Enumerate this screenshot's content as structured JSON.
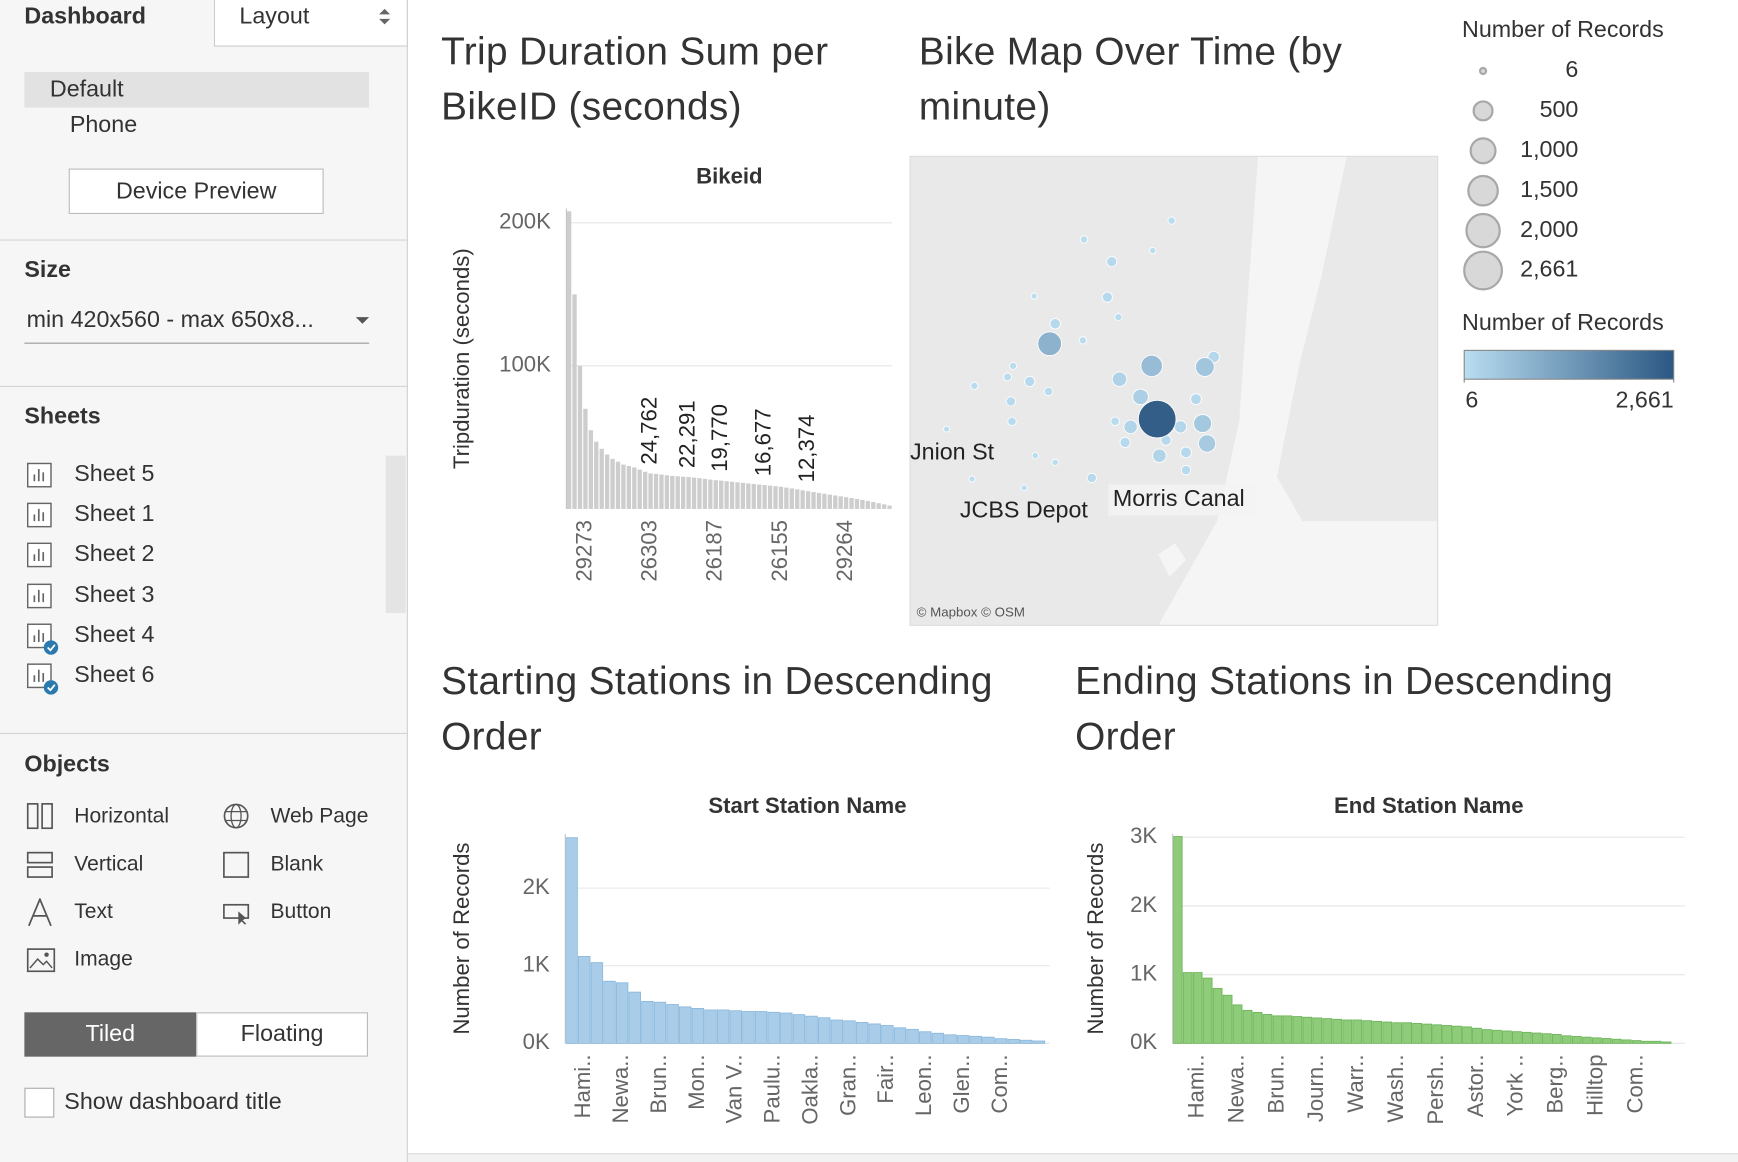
{
  "sidebar": {
    "tabs": [
      "Dashboard",
      "Layout"
    ],
    "devices": [
      "Default",
      "Phone"
    ],
    "device_preview": "Device Preview",
    "size_heading": "Size",
    "size_value": "min 420x560 - max 650x8...",
    "sheets_heading": "Sheets",
    "sheets": [
      "Sheet 5",
      "Sheet 1",
      "Sheet 2",
      "Sheet 3",
      "Sheet 4",
      "Sheet 6"
    ],
    "objects_heading": "Objects",
    "objects": [
      "Horizontal",
      "Web Page",
      "Vertical",
      "Blank",
      "Text",
      "Button",
      "Image"
    ],
    "layout_modes": [
      "Tiled",
      "Floating"
    ],
    "show_title": "Show dashboard title"
  },
  "chart_data": [
    {
      "type": "bar",
      "title": "Trip Duration Sum per BikeID (seconds)",
      "x_label": "Bikeid",
      "y_label": "Tripduration (seconds)",
      "color": "#cdcdcd",
      "categories": [
        null,
        null,
        null,
        "29273",
        null,
        null,
        null,
        null,
        null,
        null,
        null,
        null,
        null,
        null,
        null,
        "26303",
        null,
        null,
        null,
        null,
        null,
        null,
        null,
        null,
        null,
        null,
        null,
        "26187",
        null,
        null,
        null,
        null,
        null,
        null,
        null,
        null,
        null,
        null,
        null,
        "26155",
        null,
        null,
        null,
        null,
        null,
        null,
        null,
        null,
        null,
        null,
        null,
        "29264",
        null,
        null,
        null,
        null,
        null,
        null,
        null,
        null
      ],
      "values": [
        208000,
        150000,
        100000,
        70000,
        55000,
        47000,
        42000,
        38000,
        35000,
        33000,
        31000,
        30000,
        29000,
        27500,
        26000,
        24762,
        24500,
        24000,
        23500,
        23100,
        22800,
        22500,
        22291,
        21900,
        21500,
        21000,
        20500,
        20100,
        19770,
        19400,
        19000,
        18600,
        18200,
        17800,
        17400,
        17000,
        16677,
        16300,
        15900,
        15500,
        14900,
        14300,
        13700,
        13000,
        12374,
        11800,
        11200,
        10600,
        10000,
        9400,
        8800,
        8200,
        7600,
        7000,
        6300,
        5600,
        4800,
        4000,
        3200,
        2400
      ],
      "value_labels": [
        null,
        null,
        null,
        null,
        null,
        null,
        null,
        null,
        null,
        null,
        null,
        null,
        null,
        null,
        null,
        "24,762",
        null,
        null,
        null,
        null,
        null,
        null,
        "22,291",
        null,
        null,
        null,
        null,
        null,
        "19,770",
        null,
        null,
        null,
        null,
        null,
        null,
        null,
        "16,677",
        null,
        null,
        null,
        null,
        null,
        null,
        null,
        "12,374",
        null,
        null,
        null,
        null,
        null,
        null,
        null,
        null,
        null,
        null,
        null,
        null,
        null,
        null,
        null
      ],
      "ylim": [
        0,
        210000
      ],
      "yticks": [
        {
          "value": 100000,
          "label": "100K"
        },
        {
          "value": 200000,
          "label": "200K"
        }
      ],
      "grid": true
    },
    {
      "type": "map",
      "title": "Bike Map Over Time (by minute)",
      "place_labels": [
        "Jnion St",
        "JCBS Depot",
        "Morris Canal"
      ],
      "attribution": "© Mapbox © OSM",
      "lonlim": [
        -74.09,
        -73.9948
      ],
      "latlim": [
        40.75,
        40.6654
      ],
      "points": [
        {
          "lon": -74.0834,
          "lat": 40.7008,
          "value": 6
        },
        {
          "lon": -74.0788,
          "lat": 40.6918,
          "value": 6
        },
        {
          "lon": -74.0694,
          "lat": 40.6902,
          "value": 6
        },
        {
          "lon": -74.0676,
          "lat": 40.7248,
          "value": 6
        },
        {
          "lon": -74.0462,
          "lat": 40.733,
          "value": 10
        },
        {
          "lon": -74.0674,
          "lat": 40.696,
          "value": 10
        },
        {
          "lon": -74.0638,
          "lat": 40.6948,
          "value": 10
        },
        {
          "lon": -74.0586,
          "lat": 40.735,
          "value": 20
        },
        {
          "lon": -74.0428,
          "lat": 40.7384,
          "value": 20
        },
        {
          "lon": -74.0524,
          "lat": 40.721,
          "value": 20
        },
        {
          "lon": -74.0588,
          "lat": 40.7168,
          "value": 20
        },
        {
          "lon": -74.0784,
          "lat": 40.7086,
          "value": 20
        },
        {
          "lon": -74.0714,
          "lat": 40.7122,
          "value": 20
        },
        {
          "lon": -74.0724,
          "lat": 40.7102,
          "value": 30
        },
        {
          "lon": -74.0716,
          "lat": 40.7022,
          "value": 40
        },
        {
          "lon": -74.065,
          "lat": 40.7076,
          "value": 40
        },
        {
          "lon": -74.053,
          "lat": 40.7022,
          "value": 40
        },
        {
          "lon": -74.0718,
          "lat": 40.7058,
          "value": 60
        },
        {
          "lon": -74.0572,
          "lat": 40.692,
          "value": 60
        },
        {
          "lon": -74.0402,
          "lat": 40.6934,
          "value": 60
        },
        {
          "lon": -74.0536,
          "lat": 40.731,
          "value": 80
        },
        {
          "lon": -74.0544,
          "lat": 40.7246,
          "value": 80
        },
        {
          "lon": -74.0684,
          "lat": 40.7094,
          "value": 80
        },
        {
          "lon": -74.0512,
          "lat": 40.6984,
          "value": 80
        },
        {
          "lon": -74.0438,
          "lat": 40.6988,
          "value": 80
        },
        {
          "lon": -74.0638,
          "lat": 40.7198,
          "value": 90
        },
        {
          "lon": -74.0402,
          "lat": 40.6966,
          "value": 100
        },
        {
          "lon": -74.0384,
          "lat": 40.7062,
          "value": 100
        },
        {
          "lon": -74.0352,
          "lat": 40.7138,
          "value": 120
        },
        {
          "lon": -74.0412,
          "lat": 40.7012,
          "value": 150
        },
        {
          "lon": -74.045,
          "lat": 40.696,
          "value": 200
        },
        {
          "lon": -74.0502,
          "lat": 40.7012,
          "value": 200
        },
        {
          "lon": -74.0522,
          "lat": 40.7098,
          "value": 250
        },
        {
          "lon": -74.0484,
          "lat": 40.7066,
          "value": 300
        },
        {
          "lon": -74.0364,
          "lat": 40.6982,
          "value": 400
        },
        {
          "lon": -74.0372,
          "lat": 40.7018,
          "value": 450
        },
        {
          "lon": -74.0368,
          "lat": 40.712,
          "value": 500
        },
        {
          "lon": -74.0464,
          "lat": 40.7122,
          "value": 700
        },
        {
          "lon": -74.0648,
          "lat": 40.7162,
          "value": 900
        },
        {
          "lon": -74.0454,
          "lat": 40.7026,
          "value": 2661
        }
      ],
      "size_legend": {
        "title": "Number of Records",
        "values": [
          6,
          500,
          {
            "value": 1000,
            "label": "1,000"
          },
          {
            "value": 1500,
            "label": "1,500"
          },
          {
            "value": 2000,
            "label": "2,000"
          },
          {
            "value": 2661,
            "label": "2,661"
          }
        ]
      },
      "color_legend": {
        "title": "Number of Records",
        "colors": [
          "#b9ddf1",
          "#2a5783"
        ],
        "ticks": [
          6,
          {
            "value": 2661,
            "label": "2,661"
          }
        ]
      }
    },
    {
      "type": "bar",
      "title": "Starting Stations in Descending Order",
      "x_label": "Start Station Name",
      "y_label": "Number of Records",
      "color": "#a9cde9",
      "categories": [
        null,
        "Hami..",
        null,
        null,
        "Newa..",
        null,
        null,
        "Brun..",
        null,
        null,
        "Mon..",
        null,
        null,
        "Van V..",
        null,
        null,
        "Paulu..",
        null,
        null,
        "Oakla..",
        null,
        null,
        "Gran..",
        null,
        null,
        "Fair..",
        null,
        null,
        "Leon..",
        null,
        null,
        "Glen..",
        null,
        null,
        "Com..",
        null,
        null,
        null
      ],
      "values": [
        2650,
        1120,
        1040,
        800,
        780,
        660,
        540,
        530,
        500,
        470,
        450,
        430,
        430,
        420,
        410,
        410,
        400,
        390,
        370,
        350,
        330,
        300,
        290,
        270,
        250,
        230,
        200,
        180,
        150,
        130,
        110,
        100,
        90,
        80,
        60,
        50,
        40,
        30
      ],
      "ylim": [
        0,
        2700
      ],
      "yticks": [
        {
          "value": 0,
          "label": "0K"
        },
        {
          "value": 1000,
          "label": "1K"
        },
        {
          "value": 2000,
          "label": "2K"
        }
      ],
      "grid": true
    },
    {
      "type": "bar",
      "title": "Ending Stations in Descending Order",
      "x_label": "End Station Name",
      "y_label": "Number of Records",
      "color": "#8ecc79",
      "categories": [
        null,
        null,
        "Hami..",
        null,
        null,
        null,
        "Newa..",
        null,
        null,
        null,
        "Brun..",
        null,
        null,
        null,
        "Journ..",
        null,
        null,
        null,
        "Warr..",
        null,
        null,
        null,
        "Wash..",
        null,
        null,
        null,
        "Persh..",
        null,
        null,
        null,
        "Astor..",
        null,
        null,
        null,
        "York ..",
        null,
        null,
        null,
        "Berg..",
        null,
        null,
        null,
        "Hilltop",
        null,
        null,
        null,
        "Com..",
        null,
        null,
        null
      ],
      "values": [
        3010,
        1030,
        1030,
        950,
        800,
        700,
        560,
        480,
        450,
        420,
        400,
        400,
        390,
        380,
        370,
        360,
        350,
        340,
        340,
        330,
        320,
        310,
        300,
        300,
        290,
        280,
        270,
        260,
        250,
        240,
        220,
        200,
        190,
        180,
        170,
        160,
        150,
        140,
        130,
        110,
        100,
        90,
        80,
        70,
        60,
        50,
        40,
        30,
        30,
        20
      ],
      "ylim": [
        0,
        3050
      ],
      "yticks": [
        {
          "value": 0,
          "label": "0K"
        },
        {
          "value": 1000,
          "label": "1K"
        },
        {
          "value": 2000,
          "label": "2K"
        },
        {
          "value": 3000,
          "label": "3K"
        }
      ],
      "grid": true
    }
  ]
}
